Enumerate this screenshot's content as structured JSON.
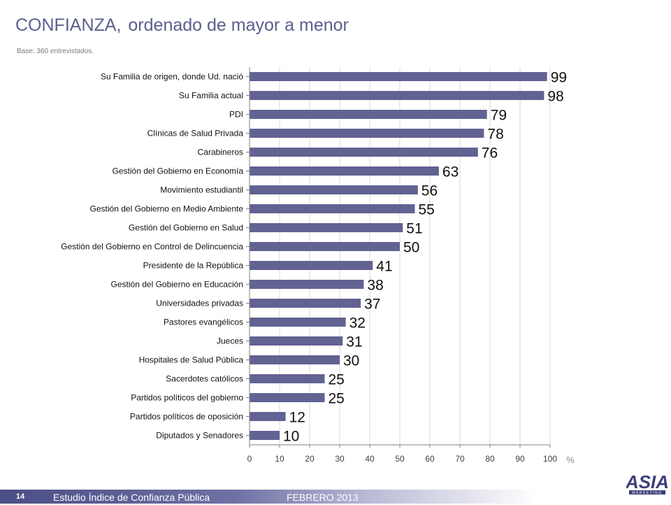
{
  "header": {
    "title": "CONFIANZA,",
    "subtitle": "ordenado de mayor a menor",
    "base_note": "Base:  360 entrevistados."
  },
  "footer": {
    "page_number": "14",
    "study_name": "Estudio  Índice de Confianza Pública",
    "date": "FEBRERO 2013",
    "logo_text": "ASIA",
    "logo_tagline": "MARKETING"
  },
  "colors": {
    "bar": "#626293",
    "title": "#5b5f8e",
    "grid": "#d9d9d9"
  },
  "chart_data": {
    "type": "bar",
    "orientation": "horizontal",
    "categories": [
      "Su Familia de origen, donde Ud. nació",
      "Su Familia actual",
      "PDI",
      "Clínicas de Salud Privada",
      "Carabineros",
      "Gestión del Gobierno en Economía",
      "Movimiento estudiantil",
      "Gestión del Gobierno en Medio Ambiente",
      "Gestión del Gobierno en Salud",
      "Gestión del Gobierno en Control de Delincuencia",
      "Presidente de la República",
      "Gestión del Gobierno en Educación",
      "Universidades privadas",
      "Pastores evangélicos",
      "Jueces",
      "Hospitales de Salud Pública",
      "Sacerdotes católicos",
      "Partidos políticos del gobierno",
      "Partidos políticos de oposición",
      "Diputados y Senadores"
    ],
    "values": [
      99,
      98,
      79,
      78,
      76,
      63,
      56,
      55,
      51,
      50,
      41,
      38,
      37,
      32,
      31,
      30,
      25,
      25,
      12,
      10
    ],
    "xlim": [
      0,
      100
    ],
    "xticks": [
      "0",
      "10",
      "20",
      "30",
      "40",
      "50",
      "60",
      "70",
      "80",
      "90",
      "100"
    ],
    "unit_label": "%",
    "grid": true
  }
}
